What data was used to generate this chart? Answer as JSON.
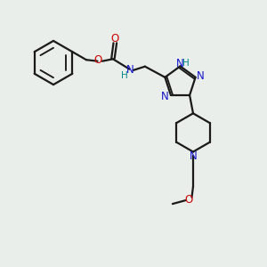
{
  "background_color": "#eaeeea",
  "bond_color": "#1a1a1a",
  "nitrogen_color": "#1414cc",
  "oxygen_color": "#cc0000",
  "hydrogen_color": "#008888",
  "bond_width": 1.6,
  "figsize": [
    3.0,
    3.0
  ],
  "dpi": 100,
  "xlim": [
    0,
    10
  ],
  "ylim": [
    0,
    10
  ]
}
